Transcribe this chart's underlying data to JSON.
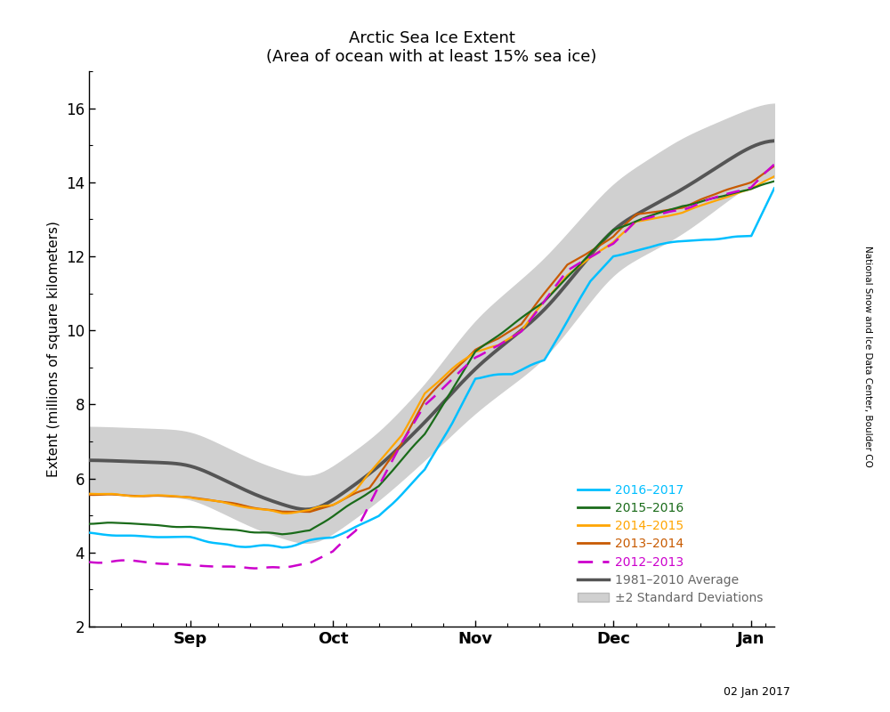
{
  "title": "Arctic Sea Ice Extent",
  "subtitle": "(Area of ocean with at least 15% sea ice)",
  "ylabel": "Extent (millions of square kilometers)",
  "date_label": "02 Jan 2017",
  "side_label": "National Snow and Ice Data Center, Boulder CO",
  "ylim": [
    2,
    17
  ],
  "yticks": [
    2,
    4,
    6,
    8,
    10,
    12,
    14,
    16
  ],
  "x_month_labels": [
    "Sep",
    "Oct",
    "Nov",
    "Dec",
    "Jan"
  ],
  "legend_entries": [
    {
      "label": "2016–2017",
      "color": "#00BFFF",
      "linestyle": "solid"
    },
    {
      "label": "2015–2016",
      "color": "#1a6b1a",
      "linestyle": "solid"
    },
    {
      "label": "2014–2015",
      "color": "#FFA500",
      "linestyle": "solid"
    },
    {
      "label": "2013–2014",
      "color": "#c85a00",
      "linestyle": "solid"
    },
    {
      "label": "2012–2013",
      "color": "#cc00cc",
      "linestyle": "dashed"
    },
    {
      "label": "1981–2010 Average",
      "color": "#555555",
      "linestyle": "solid"
    },
    {
      "label": "±2 Standard Deviations",
      "color": "#d0d0d0",
      "linestyle": "patch"
    }
  ],
  "avg_color": "#555555",
  "shade_color": "#d0d0d0",
  "color_2016": "#00BFFF",
  "color_2015": "#1a6b1a",
  "color_2014": "#FFA500",
  "color_2013": "#c85a00",
  "color_2012": "#cc00cc",
  "background_color": "#ffffff"
}
